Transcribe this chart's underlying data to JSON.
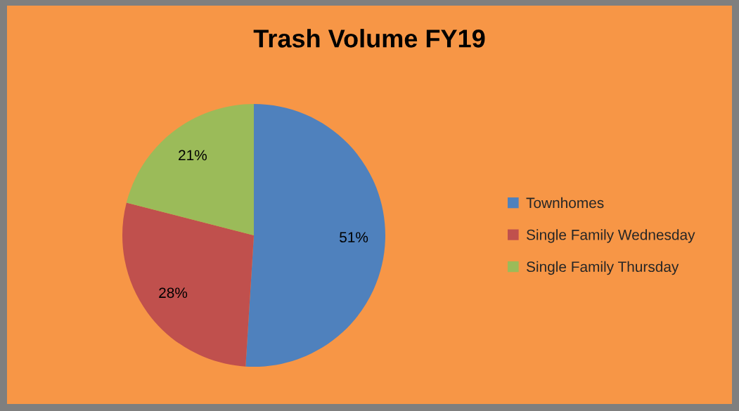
{
  "chart_data": {
    "type": "pie",
    "title": "Trash Volume FY19",
    "categories": [
      "Townhomes",
      "Single Family Wednesday",
      "Single Family Thursday"
    ],
    "values": [
      51,
      28,
      21
    ],
    "colors": [
      "#4f81bd",
      "#c0504d",
      "#9bbb59"
    ],
    "value_labels": [
      "51%",
      "28%",
      "21%"
    ],
    "legend": "right"
  }
}
